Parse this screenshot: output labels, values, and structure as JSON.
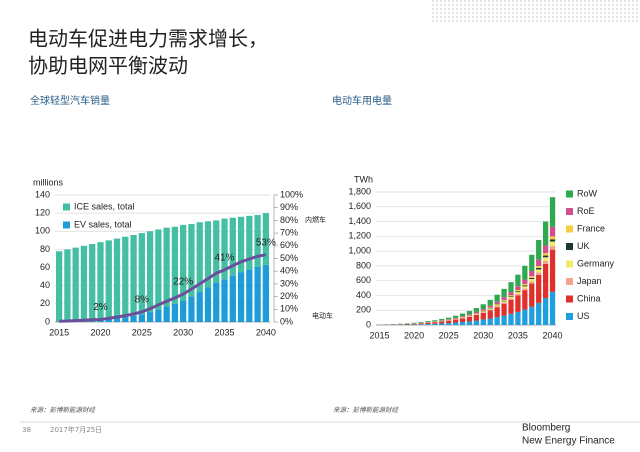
{
  "header": {
    "title_lines": [
      "电动车促进电力需求增长，",
      "协助电网平衡波动"
    ]
  },
  "footer": {
    "page": "38",
    "date": "2017年7月25日",
    "brand": "Bloomberg",
    "brand_sub": "New Energy Finance"
  },
  "chart_data": [
    {
      "type": "bar",
      "stacked": true,
      "title": "全球轻型汽车销量",
      "y_label": "millions",
      "source": "来源：彭博新能源财经",
      "categories": [
        "2015",
        null,
        null,
        null,
        null,
        "2020",
        null,
        null,
        null,
        null,
        "2025",
        null,
        null,
        null,
        null,
        "2030",
        null,
        null,
        null,
        null,
        "2035",
        null,
        null,
        null,
        null,
        "2040"
      ],
      "legend": "upper left",
      "grid": true,
      "ylim": [
        0,
        140
      ],
      "yticks": [
        0,
        20,
        40,
        60,
        80,
        100,
        120,
        140
      ],
      "y2lim": [
        0,
        100
      ],
      "y2ticks": [
        {
          "value": 0,
          "label": "0%"
        },
        {
          "value": 10,
          "label": "10%"
        },
        {
          "value": 20,
          "label": "20%"
        },
        {
          "value": 30,
          "label": "30%"
        },
        {
          "value": 40,
          "label": "40%"
        },
        {
          "value": 50,
          "label": "50%"
        },
        {
          "value": 60,
          "label": "60%"
        },
        {
          "value": 70,
          "label": "70%"
        },
        {
          "value": 80,
          "label": "80%"
        },
        {
          "value": 90,
          "label": "90%"
        },
        {
          "value": 100,
          "label": "100%"
        }
      ],
      "annotations": [
        "内燃车",
        "电动车"
      ],
      "series": [
        {
          "name": "ICE sales, total",
          "color": "#45bfa3",
          "values": [
            77.5,
            79.2,
            80.8,
            82.5,
            84,
            85.5,
            86.5,
            87.5,
            88.5,
            89,
            89.5,
            89,
            88,
            87,
            85,
            83,
            80,
            77,
            73,
            69,
            67,
            64,
            61,
            59,
            57,
            57
          ]
        },
        {
          "name": "EV sales, total",
          "color": "#1e9cd7",
          "values": [
            0.5,
            0.8,
            1.2,
            1.5,
            2,
            2.5,
            3.5,
            4.5,
            5.5,
            7,
            8.5,
            11,
            14,
            17,
            20,
            24,
            28,
            33,
            38,
            43,
            47,
            51,
            55,
            58,
            61,
            63
          ]
        },
        {
          "type": "line",
          "axis": "y2",
          "color": "#6a4f9c",
          "values": [
            0.6,
            0.8,
            1.1,
            1.4,
            1.7,
            2,
            2.8,
            3.9,
            5,
            6.3,
            8,
            10.5,
            13.5,
            16.3,
            19,
            22,
            25.9,
            30,
            34.2,
            38.4,
            41,
            44.3,
            47.4,
            49.6,
            51.7,
            53
          ],
          "value_labels": [
            null,
            null,
            null,
            null,
            null,
            "2%",
            null,
            null,
            null,
            null,
            "8%",
            null,
            null,
            null,
            null,
            "22%",
            null,
            null,
            null,
            null,
            "41%",
            null,
            null,
            null,
            null,
            "53%"
          ]
        }
      ]
    },
    {
      "type": "bar",
      "stacked": true,
      "title": "电动车用电量",
      "y_label": "TWh",
      "source": "来源：彭博新能源财经",
      "categories": [
        "2015",
        null,
        null,
        null,
        null,
        "2020",
        null,
        null,
        null,
        null,
        "2025",
        null,
        null,
        null,
        null,
        "2030",
        null,
        null,
        null,
        null,
        "2035",
        null,
        null,
        null,
        null,
        "2040"
      ],
      "legend": "right",
      "grid": true,
      "ylim": [
        0,
        1800
      ],
      "yticks": [
        0,
        200,
        400,
        600,
        800,
        {
          "value": 1000,
          "label": "1,000"
        },
        {
          "value": 1200,
          "label": "1,200"
        },
        {
          "value": 1400,
          "label": "1,400"
        },
        {
          "value": 1600,
          "label": "1,600"
        },
        {
          "value": 1800,
          "label": "1,800"
        }
      ],
      "series": [
        {
          "name": "RoW",
          "color": "#2fa84f",
          "values": [
            1.2,
            1.8,
            2.8,
            3.9,
            5.3,
            6.9,
            9.2,
            12,
            15,
            19,
            23,
            29,
            36,
            44,
            53,
            65,
            79,
            95,
            113,
            134,
            157,
            185,
            219,
            266,
            323,
            400
          ]
        },
        {
          "name": "RoE",
          "color": "#d24f8e",
          "values": [
            0.4,
            0.6,
            0.9,
            1.3,
            1.7,
            2.3,
            3,
            3.9,
            4.9,
            6.2,
            7.5,
            9.4,
            12,
            14,
            17,
            21,
            26,
            31,
            37,
            44,
            51,
            60,
            71,
            86,
            105,
            130
          ]
        },
        {
          "name": "France",
          "color": "#f6cf3a",
          "values": [
            0.1,
            0.2,
            0.3,
            0.4,
            0.5,
            0.7,
            0.9,
            1.2,
            1.5,
            1.9,
            2.3,
            2.9,
            3.6,
            4.4,
            5.3,
            6.4,
            7.8,
            9.4,
            11,
            13,
            16,
            18,
            22,
            26,
            32,
            40
          ]
        },
        {
          "name": "UK",
          "color": "#1b3a2c",
          "values": [
            0.1,
            0.1,
            0.2,
            0.3,
            0.4,
            0.5,
            0.7,
            0.9,
            1.1,
            1.4,
            1.7,
            2.1,
            2.6,
            3.2,
            3.9,
            4.8,
            5.8,
            7,
            8.3,
            9.9,
            12,
            14,
            16,
            20,
            24,
            30
          ]
        },
        {
          "name": "Germany",
          "color": "#f3ea6a",
          "values": [
            0.2,
            0.3,
            0.4,
            0.6,
            0.8,
            1,
            1.4,
            1.8,
            2.3,
            2.9,
            3.5,
            4.4,
            5.4,
            6.7,
            8,
            10,
            12,
            14,
            17,
            20,
            24,
            28,
            33,
            40,
            49,
            60
          ]
        },
        {
          "name": "Japan",
          "color": "#f2a48c",
          "values": [
            0.1,
            0.2,
            0.3,
            0.5,
            0.7,
            0.9,
            1.2,
            1.5,
            1.9,
            2.4,
            2.9,
            3.6,
            4.5,
            5.5,
            6.7,
            8.1,
            9.9,
            12,
            14,
            17,
            20,
            23,
            28,
            33,
            41,
            50
          ]
        },
        {
          "name": "China",
          "color": "#e0302b",
          "values": [
            1.7,
            2.6,
            4,
            5.6,
            7.6,
            10,
            13,
            17,
            21,
            27,
            33,
            41,
            51,
            63,
            76,
            92,
            112,
            135,
            162,
            191,
            224,
            264,
            314,
            380,
            462,
            570
          ]
        },
        {
          "name": "US",
          "color": "#1f9fe0",
          "values": [
            1.3,
            2.1,
            3.1,
            4.4,
            6,
            7.8,
            10,
            14,
            17,
            21,
            26,
            33,
            40,
            49,
            60,
            73,
            88,
            107,
            127,
            151,
            177,
            208,
            247,
            299,
            364,
            450
          ]
        }
      ]
    }
  ]
}
